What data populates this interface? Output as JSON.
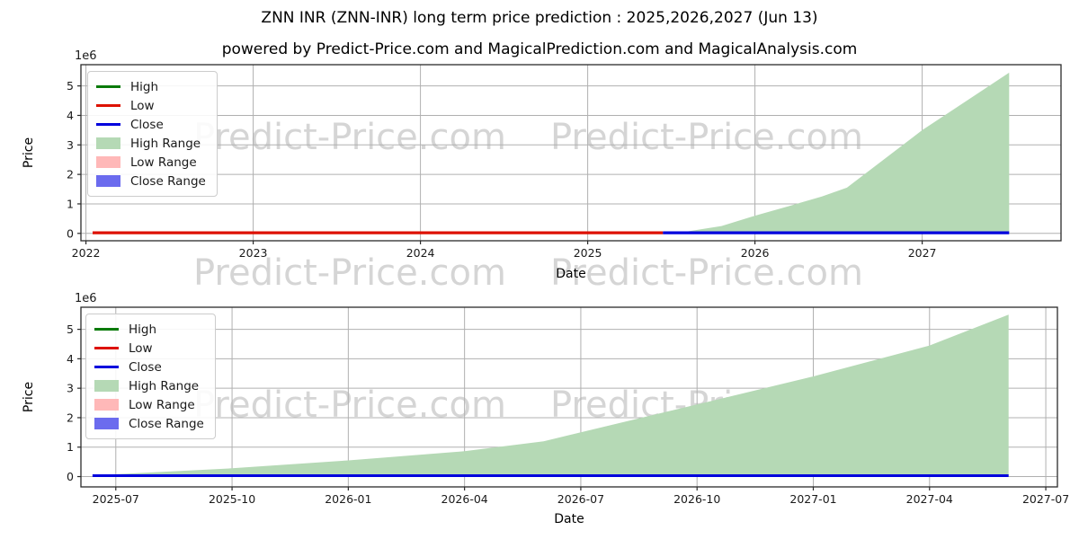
{
  "header": {
    "title": "ZNN INR (ZNN-INR) long term price prediction : 2025,2026,2027 (Jun 13)",
    "subtitle": "powered by Predict-Price.com and MagicalPrediction.com and MagicalAnalysis.com"
  },
  "watermark": {
    "text": "Predict-Price.com"
  },
  "colors": {
    "high": "#0a7a0a",
    "low": "#dd1100",
    "close": "#0000dd",
    "high_range": "#b5d9b5",
    "low_range": "#ffb8b8",
    "close_range": "#6b6bee",
    "grid": "#b0b0b0",
    "spine": "#2b2b2b",
    "tick_text": "#1a1a1a"
  },
  "legend": {
    "items": [
      {
        "label": "High",
        "swatch": "line",
        "color_key": "high"
      },
      {
        "label": "Low",
        "swatch": "line",
        "color_key": "low"
      },
      {
        "label": "Close",
        "swatch": "line",
        "color_key": "close"
      },
      {
        "label": "High Range",
        "swatch": "patch",
        "color_key": "high_range"
      },
      {
        "label": "Low Range",
        "swatch": "patch",
        "color_key": "low_range"
      },
      {
        "label": "Close Range",
        "swatch": "patch",
        "color_key": "close_range"
      }
    ]
  },
  "chart_data": [
    {
      "type": "area",
      "title": "",
      "xlabel": "Date",
      "ylabel": "Price",
      "y_offset_label": "1e6",
      "grid": true,
      "legend_position": "upper left",
      "xlim": [
        2021.97,
        2027.83
      ],
      "ylim": [
        -0.25,
        5.72
      ],
      "x_ticks": [
        {
          "v": 2022,
          "label": "2022"
        },
        {
          "v": 2023,
          "label": "2023"
        },
        {
          "v": 2024,
          "label": "2024"
        },
        {
          "v": 2025,
          "label": "2025"
        },
        {
          "v": 2026,
          "label": "2026"
        },
        {
          "v": 2027,
          "label": "2027"
        }
      ],
      "y_ticks": [
        {
          "v": 0,
          "label": "0"
        },
        {
          "v": 1,
          "label": "1"
        },
        {
          "v": 2,
          "label": "2"
        },
        {
          "v": 3,
          "label": "3"
        },
        {
          "v": 4,
          "label": "4"
        },
        {
          "v": 5,
          "label": "5"
        }
      ],
      "series": [
        {
          "name": "High Range",
          "kind": "area",
          "color_key": "high_range",
          "width": 0,
          "points": [
            [
              2025.45,
              0.02
            ],
            [
              2025.6,
              0.07
            ],
            [
              2025.8,
              0.25
            ],
            [
              2026.0,
              0.6
            ],
            [
              2026.2,
              0.92
            ],
            [
              2026.4,
              1.25
            ],
            [
              2026.55,
              1.55
            ],
            [
              2027.0,
              3.5
            ],
            [
              2027.52,
              5.45
            ]
          ]
        },
        {
          "name": "Low",
          "kind": "line",
          "color_key": "low",
          "width": 3.2,
          "points": [
            [
              2022.04,
              0.02
            ],
            [
              2025.45,
              0.02
            ]
          ]
        },
        {
          "name": "Close",
          "kind": "line",
          "color_key": "close",
          "width": 3.2,
          "points": [
            [
              2025.45,
              0.02
            ],
            [
              2027.52,
              0.02
            ]
          ]
        }
      ]
    },
    {
      "type": "area",
      "title": "",
      "xlabel": "Date",
      "ylabel": "Price",
      "y_offset_label": "1e6",
      "grid": true,
      "legend_position": "upper left",
      "xlim": [
        2025.425,
        2027.525
      ],
      "ylim": [
        -0.35,
        5.75
      ],
      "x_ticks": [
        {
          "v": 2025.5,
          "label": "2025-07"
        },
        {
          "v": 2025.75,
          "label": "2025-10"
        },
        {
          "v": 2026.0,
          "label": "2026-01"
        },
        {
          "v": 2026.25,
          "label": "2026-04"
        },
        {
          "v": 2026.5,
          "label": "2026-07"
        },
        {
          "v": 2026.75,
          "label": "2026-10"
        },
        {
          "v": 2027.0,
          "label": "2027-01"
        },
        {
          "v": 2027.25,
          "label": "2027-04"
        },
        {
          "v": 2027.5,
          "label": "2027-07"
        }
      ],
      "y_ticks": [
        {
          "v": 0,
          "label": "0"
        },
        {
          "v": 1,
          "label": "1"
        },
        {
          "v": 2,
          "label": "2"
        },
        {
          "v": 3,
          "label": "3"
        },
        {
          "v": 4,
          "label": "4"
        },
        {
          "v": 5,
          "label": "5"
        }
      ],
      "series": [
        {
          "name": "High Range",
          "kind": "area",
          "color_key": "high_range",
          "width": 0,
          "points": [
            [
              2025.45,
              0.04
            ],
            [
              2025.5,
              0.08
            ],
            [
              2025.75,
              0.28
            ],
            [
              2026.0,
              0.55
            ],
            [
              2026.25,
              0.86
            ],
            [
              2026.42,
              1.2
            ],
            [
              2026.5,
              1.5
            ],
            [
              2026.75,
              2.45
            ],
            [
              2027.0,
              3.4
            ],
            [
              2027.25,
              4.45
            ],
            [
              2027.42,
              5.5
            ]
          ]
        },
        {
          "name": "Close",
          "kind": "line",
          "color_key": "close",
          "width": 3,
          "points": [
            [
              2025.45,
              0.03
            ],
            [
              2027.42,
              0.03
            ]
          ]
        }
      ]
    }
  ]
}
